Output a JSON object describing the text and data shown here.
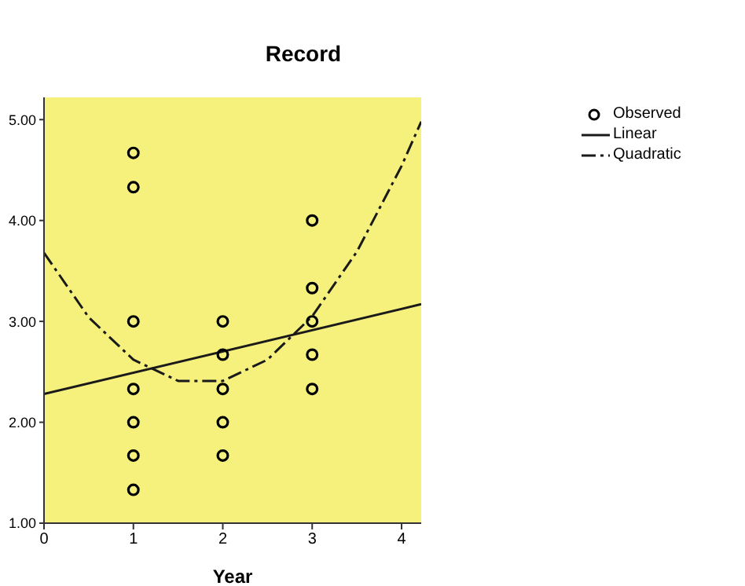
{
  "chart_data": {
    "type": "scatter",
    "title": "Record",
    "xlabel": "Year",
    "xlim": [
      0,
      4.22
    ],
    "xticks": [
      0,
      1,
      2,
      3,
      4
    ],
    "ylim": [
      1,
      5.22
    ],
    "yticks": [
      {
        "value": 1,
        "label": "1.00"
      },
      {
        "value": 2,
        "label": "2.00"
      },
      {
        "value": 3,
        "label": "3.00"
      },
      {
        "value": 4,
        "label": "4.00"
      },
      {
        "value": 5,
        "label": "5.00"
      }
    ],
    "grid": false,
    "legend": "top right",
    "series": [
      {
        "name": "Observed",
        "marker": "circle",
        "color": "#000000",
        "x": [
          1,
          1,
          1,
          1,
          1,
          1,
          1,
          2,
          2,
          2,
          2,
          2,
          3,
          3,
          3,
          3,
          3
        ],
        "values": [
          4.67,
          4.33,
          3.0,
          2.33,
          2.0,
          1.67,
          1.33,
          3.0,
          2.67,
          2.33,
          2.0,
          1.67,
          4.0,
          3.33,
          3.0,
          2.67,
          2.33
        ]
      },
      {
        "name": "Linear",
        "type": "line",
        "marker": "none",
        "line_style": "solid",
        "color": "#1a1a1a",
        "x": [
          0,
          4.22
        ],
        "values": [
          2.28,
          3.17
        ]
      },
      {
        "name": "Quadratic",
        "type": "line",
        "marker": "none",
        "line_style": "dashed",
        "color": "#1a1a1a",
        "x": [
          0,
          0.5,
          1,
          1.5,
          2,
          2.5,
          3,
          3.5,
          4,
          4.22
        ],
        "values": [
          3.68,
          3.04,
          2.62,
          2.41,
          2.41,
          2.62,
          3.05,
          3.69,
          4.54,
          4.98
        ]
      }
    ]
  }
}
